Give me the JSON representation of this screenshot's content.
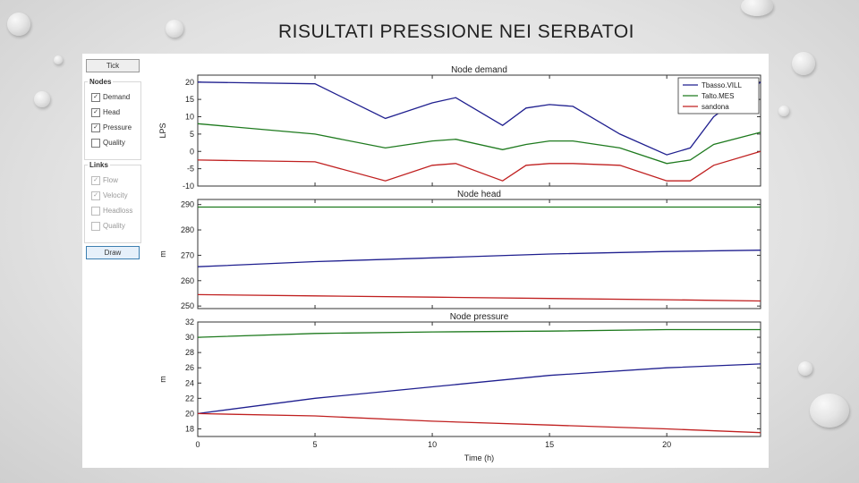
{
  "slide": {
    "title": "RISULTATI PRESSIONE NEI SERBATOI"
  },
  "sidebar": {
    "tick_button": "Tick",
    "nodes_label": "Nodes",
    "nodes_items": [
      {
        "label": "Demand",
        "checked": true
      },
      {
        "label": "Head",
        "checked": true
      },
      {
        "label": "Pressure",
        "checked": true
      },
      {
        "label": "Quality",
        "checked": false
      }
    ],
    "links_label": "Links",
    "links_items": [
      {
        "label": "Flow",
        "checked": true
      },
      {
        "label": "Velocity",
        "checked": true
      },
      {
        "label": "Headloss",
        "checked": false
      },
      {
        "label": "Quality",
        "checked": false
      }
    ],
    "draw_button": "Draw"
  },
  "colors": {
    "series1": "#1f1f8f",
    "series2": "#1e7a1e",
    "series3": "#c02020"
  },
  "chart_data": [
    {
      "type": "line",
      "title": "Node demand",
      "ylabel": "LPS",
      "xlim": [
        0,
        24
      ],
      "ylim": [
        -10,
        22
      ],
      "yticks": [
        -10,
        -5,
        0,
        5,
        10,
        15,
        20
      ],
      "legend": "top-right",
      "x": [
        0,
        5,
        8,
        10,
        11,
        13,
        14,
        15,
        16,
        18,
        20,
        21,
        22,
        24
      ],
      "series": [
        {
          "name": "Tbasso.VILL",
          "values": [
            20,
            19.5,
            9.5,
            14,
            15.5,
            7.5,
            12.5,
            13.5,
            13,
            5,
            -1,
            1,
            10,
            20
          ]
        },
        {
          "name": "Talto.MES",
          "values": [
            8,
            5,
            1,
            3,
            3.5,
            0.5,
            2,
            3,
            3,
            1,
            -3.5,
            -2.5,
            2,
            5.5
          ]
        },
        {
          "name": "sandona",
          "values": [
            -2.5,
            -3,
            -8.5,
            -4,
            -3.5,
            -8.5,
            -4,
            -3.5,
            -3.5,
            -4,
            -8.5,
            -8.5,
            -4,
            0
          ]
        }
      ]
    },
    {
      "type": "line",
      "title": "Node head",
      "ylabel": "m",
      "xlim": [
        0,
        24
      ],
      "ylim": [
        249,
        292
      ],
      "yticks": [
        250,
        260,
        270,
        280,
        290
      ],
      "x": [
        0,
        5,
        10,
        15,
        20,
        24
      ],
      "series": [
        {
          "values": [
            265.5,
            267.5,
            269,
            270.5,
            271.5,
            272
          ]
        },
        {
          "values": [
            289,
            289,
            289,
            289,
            289,
            289
          ]
        },
        {
          "values": [
            254.5,
            254,
            253.5,
            253,
            252.5,
            252
          ]
        }
      ]
    },
    {
      "type": "line",
      "title": "Node pressure",
      "xlabel": "Time (h)",
      "ylabel": "m",
      "xlim": [
        0,
        24
      ],
      "ylim": [
        17,
        32
      ],
      "xticks": [
        0,
        5,
        10,
        15,
        20
      ],
      "yticks": [
        18,
        20,
        22,
        24,
        26,
        28,
        30,
        32
      ],
      "x": [
        0,
        5,
        10,
        15,
        20,
        24
      ],
      "series": [
        {
          "values": [
            20,
            22,
            23.5,
            25,
            26,
            26.5
          ]
        },
        {
          "values": [
            30,
            30.5,
            30.7,
            30.8,
            31,
            31
          ]
        },
        {
          "values": [
            20,
            19.7,
            19,
            18.5,
            18,
            17.5
          ]
        }
      ]
    }
  ]
}
